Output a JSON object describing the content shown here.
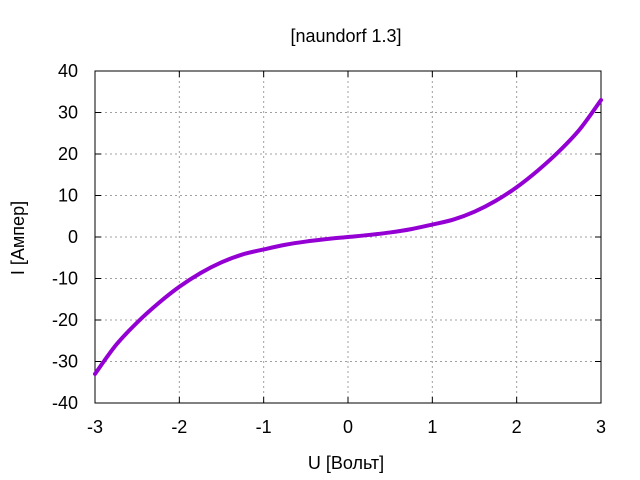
{
  "chart_data": {
    "type": "line",
    "title": "[naundorf 1.3]",
    "xlabel": "U [Вольт]",
    "ylabel": "I [Ампер]",
    "xlim": [
      -3,
      3
    ],
    "ylim": [
      -40,
      40
    ],
    "xticks": [
      -3,
      -2,
      -1,
      0,
      1,
      2,
      3
    ],
    "yticks": [
      -40,
      -30,
      -20,
      -10,
      0,
      10,
      20,
      30,
      40
    ],
    "xtick_labels": [
      "-3",
      "-2",
      "-1",
      "0",
      "1",
      "2",
      "3"
    ],
    "ytick_labels": [
      "-40",
      "-30",
      "-20",
      "-10",
      "0",
      "10",
      "20",
      "30",
      "40"
    ],
    "grid": true,
    "legend": "none",
    "series": [
      {
        "color": "#9400d3",
        "x": [
          -3.0,
          -2.75,
          -2.5,
          -2.25,
          -2.0,
          -1.75,
          -1.5,
          -1.25,
          -1.0,
          -0.75,
          -0.5,
          -0.25,
          0.0,
          0.25,
          0.5,
          0.75,
          1.0,
          1.25,
          1.5,
          1.75,
          2.0,
          2.25,
          2.5,
          2.75,
          3.0
        ],
        "y": [
          -33.0,
          -26.0,
          -20.6,
          -16.0,
          -12.0,
          -8.7,
          -6.1,
          -4.2,
          -3.0,
          -1.9,
          -1.1,
          -0.5,
          0.0,
          0.5,
          1.1,
          1.9,
          3.0,
          4.2,
          6.1,
          8.7,
          12.0,
          16.0,
          20.6,
          26.0,
          33.0
        ]
      }
    ]
  }
}
